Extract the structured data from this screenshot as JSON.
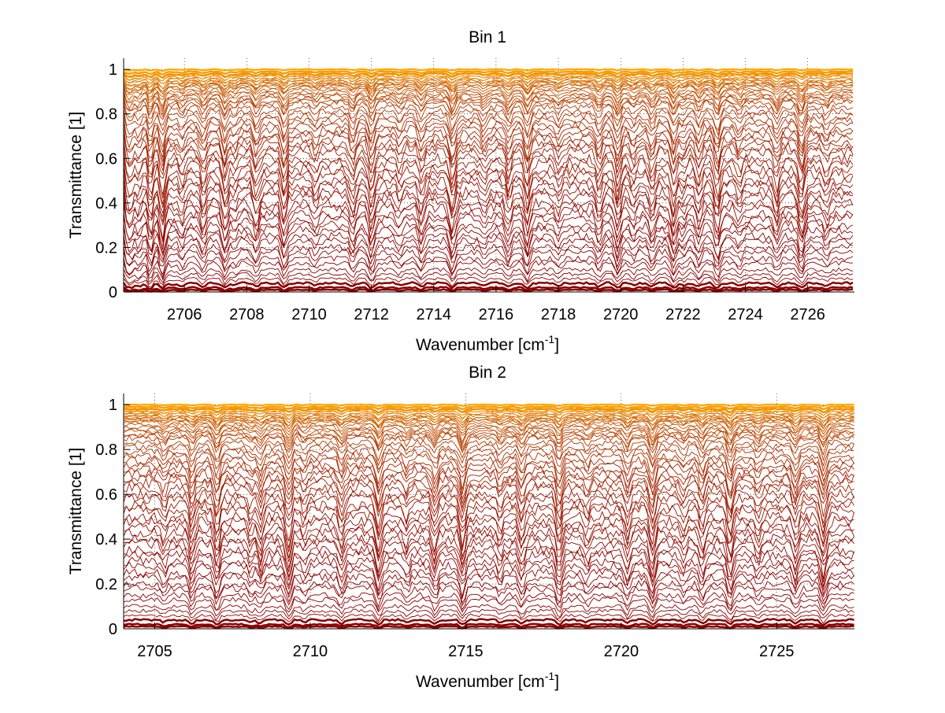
{
  "chart_data": [
    {
      "type": "line",
      "title": "Bin 1",
      "xlabel": "Wavenumber [cm",
      "xlabel_sup": "-1",
      "xlabel_end": "]",
      "ylabel": "Transmittance [1]",
      "xlim": [
        2704.05,
        2727.5
      ],
      "ylim": [
        0,
        1.05
      ],
      "xticks": [
        2706,
        2708,
        2710,
        2712,
        2714,
        2716,
        2718,
        2720,
        2722,
        2724,
        2726
      ],
      "yticks": [
        0,
        0.2,
        0.4,
        0.6,
        0.8,
        1
      ],
      "ytick_labels": [
        "0",
        "0.2",
        "0.4",
        "0.6",
        "0.8",
        "1"
      ],
      "grid": "dotted",
      "series_count": 60,
      "series_description": "stacked transmittance spectra, baselines from ~0.01 up to ~1.0, color from dark red (low) to orange (high)",
      "series_baselines": [
        0.01,
        0.02,
        0.04,
        0.06,
        0.08,
        0.1,
        0.13,
        0.15,
        0.18,
        0.2,
        0.23,
        0.25,
        0.28,
        0.3,
        0.33,
        0.35,
        0.38,
        0.4,
        0.43,
        0.45,
        0.48,
        0.5,
        0.53,
        0.55,
        0.58,
        0.6,
        0.63,
        0.65,
        0.67,
        0.69,
        0.71,
        0.73,
        0.75,
        0.77,
        0.79,
        0.81,
        0.83,
        0.85,
        0.86,
        0.87,
        0.88,
        0.89,
        0.9,
        0.91,
        0.92,
        0.93,
        0.93,
        0.94,
        0.94,
        0.95,
        0.95,
        0.96,
        0.96,
        0.97,
        0.97,
        0.98,
        0.98,
        0.99,
        0.99,
        1.0
      ],
      "absorption_lines": [
        2704.4,
        2704.9,
        2705.3,
        2705.9,
        2706.6,
        2707.3,
        2707.6,
        2708.3,
        2709.2,
        2710.2,
        2711.4,
        2712.0,
        2712.9,
        2713.6,
        2714.6,
        2715.6,
        2716.4,
        2717.0,
        2718.0,
        2719.3,
        2719.9,
        2720.4,
        2721.0,
        2721.7,
        2722.0,
        2722.5,
        2723.1,
        2723.8,
        2725.0,
        2725.8,
        2726.6
      ]
    },
    {
      "type": "line",
      "title": "Bin 2",
      "xlabel": "Wavenumber [cm",
      "xlabel_sup": "-1",
      "xlabel_end": "]",
      "ylabel": "Transmittance [1]",
      "xlim": [
        2704.0,
        2727.5
      ],
      "ylim": [
        0,
        1.05
      ],
      "xticks": [
        2705,
        2710,
        2715,
        2720,
        2725
      ],
      "yticks": [
        0,
        0.2,
        0.4,
        0.6,
        0.8,
        1
      ],
      "ytick_labels": [
        "0",
        "0.2",
        "0.4",
        "0.6",
        "0.8",
        "1"
      ],
      "grid": "dotted",
      "series_count": 60,
      "series_description": "stacked transmittance spectra, baselines from ~0.01 up to ~1.0, color from dark red (low) to orange (high)",
      "series_baselines": [
        0.01,
        0.02,
        0.04,
        0.06,
        0.08,
        0.1,
        0.13,
        0.15,
        0.18,
        0.2,
        0.23,
        0.25,
        0.28,
        0.3,
        0.33,
        0.35,
        0.38,
        0.4,
        0.43,
        0.45,
        0.48,
        0.5,
        0.53,
        0.55,
        0.58,
        0.6,
        0.63,
        0.65,
        0.67,
        0.69,
        0.71,
        0.73,
        0.75,
        0.77,
        0.79,
        0.81,
        0.83,
        0.85,
        0.86,
        0.87,
        0.88,
        0.89,
        0.9,
        0.91,
        0.92,
        0.93,
        0.93,
        0.94,
        0.94,
        0.95,
        0.95,
        0.96,
        0.96,
        0.97,
        0.97,
        0.98,
        0.98,
        0.99,
        0.99,
        1.0
      ],
      "absorption_lines": [
        2705.3,
        2706.2,
        2707.0,
        2708.1,
        2708.4,
        2709.3,
        2709.8,
        2711.0,
        2712.2,
        2713.1,
        2714.0,
        2714.9,
        2716.1,
        2716.8,
        2718.0,
        2718.9,
        2720.2,
        2721.0,
        2722.0,
        2722.6,
        2723.5,
        2724.4,
        2725.6,
        2726.5
      ]
    }
  ],
  "colors": {
    "line_low": "#8b0000",
    "line_high": "#ffa500",
    "axis": "#000000",
    "grid": "#000000",
    "background": "#ffffff"
  }
}
